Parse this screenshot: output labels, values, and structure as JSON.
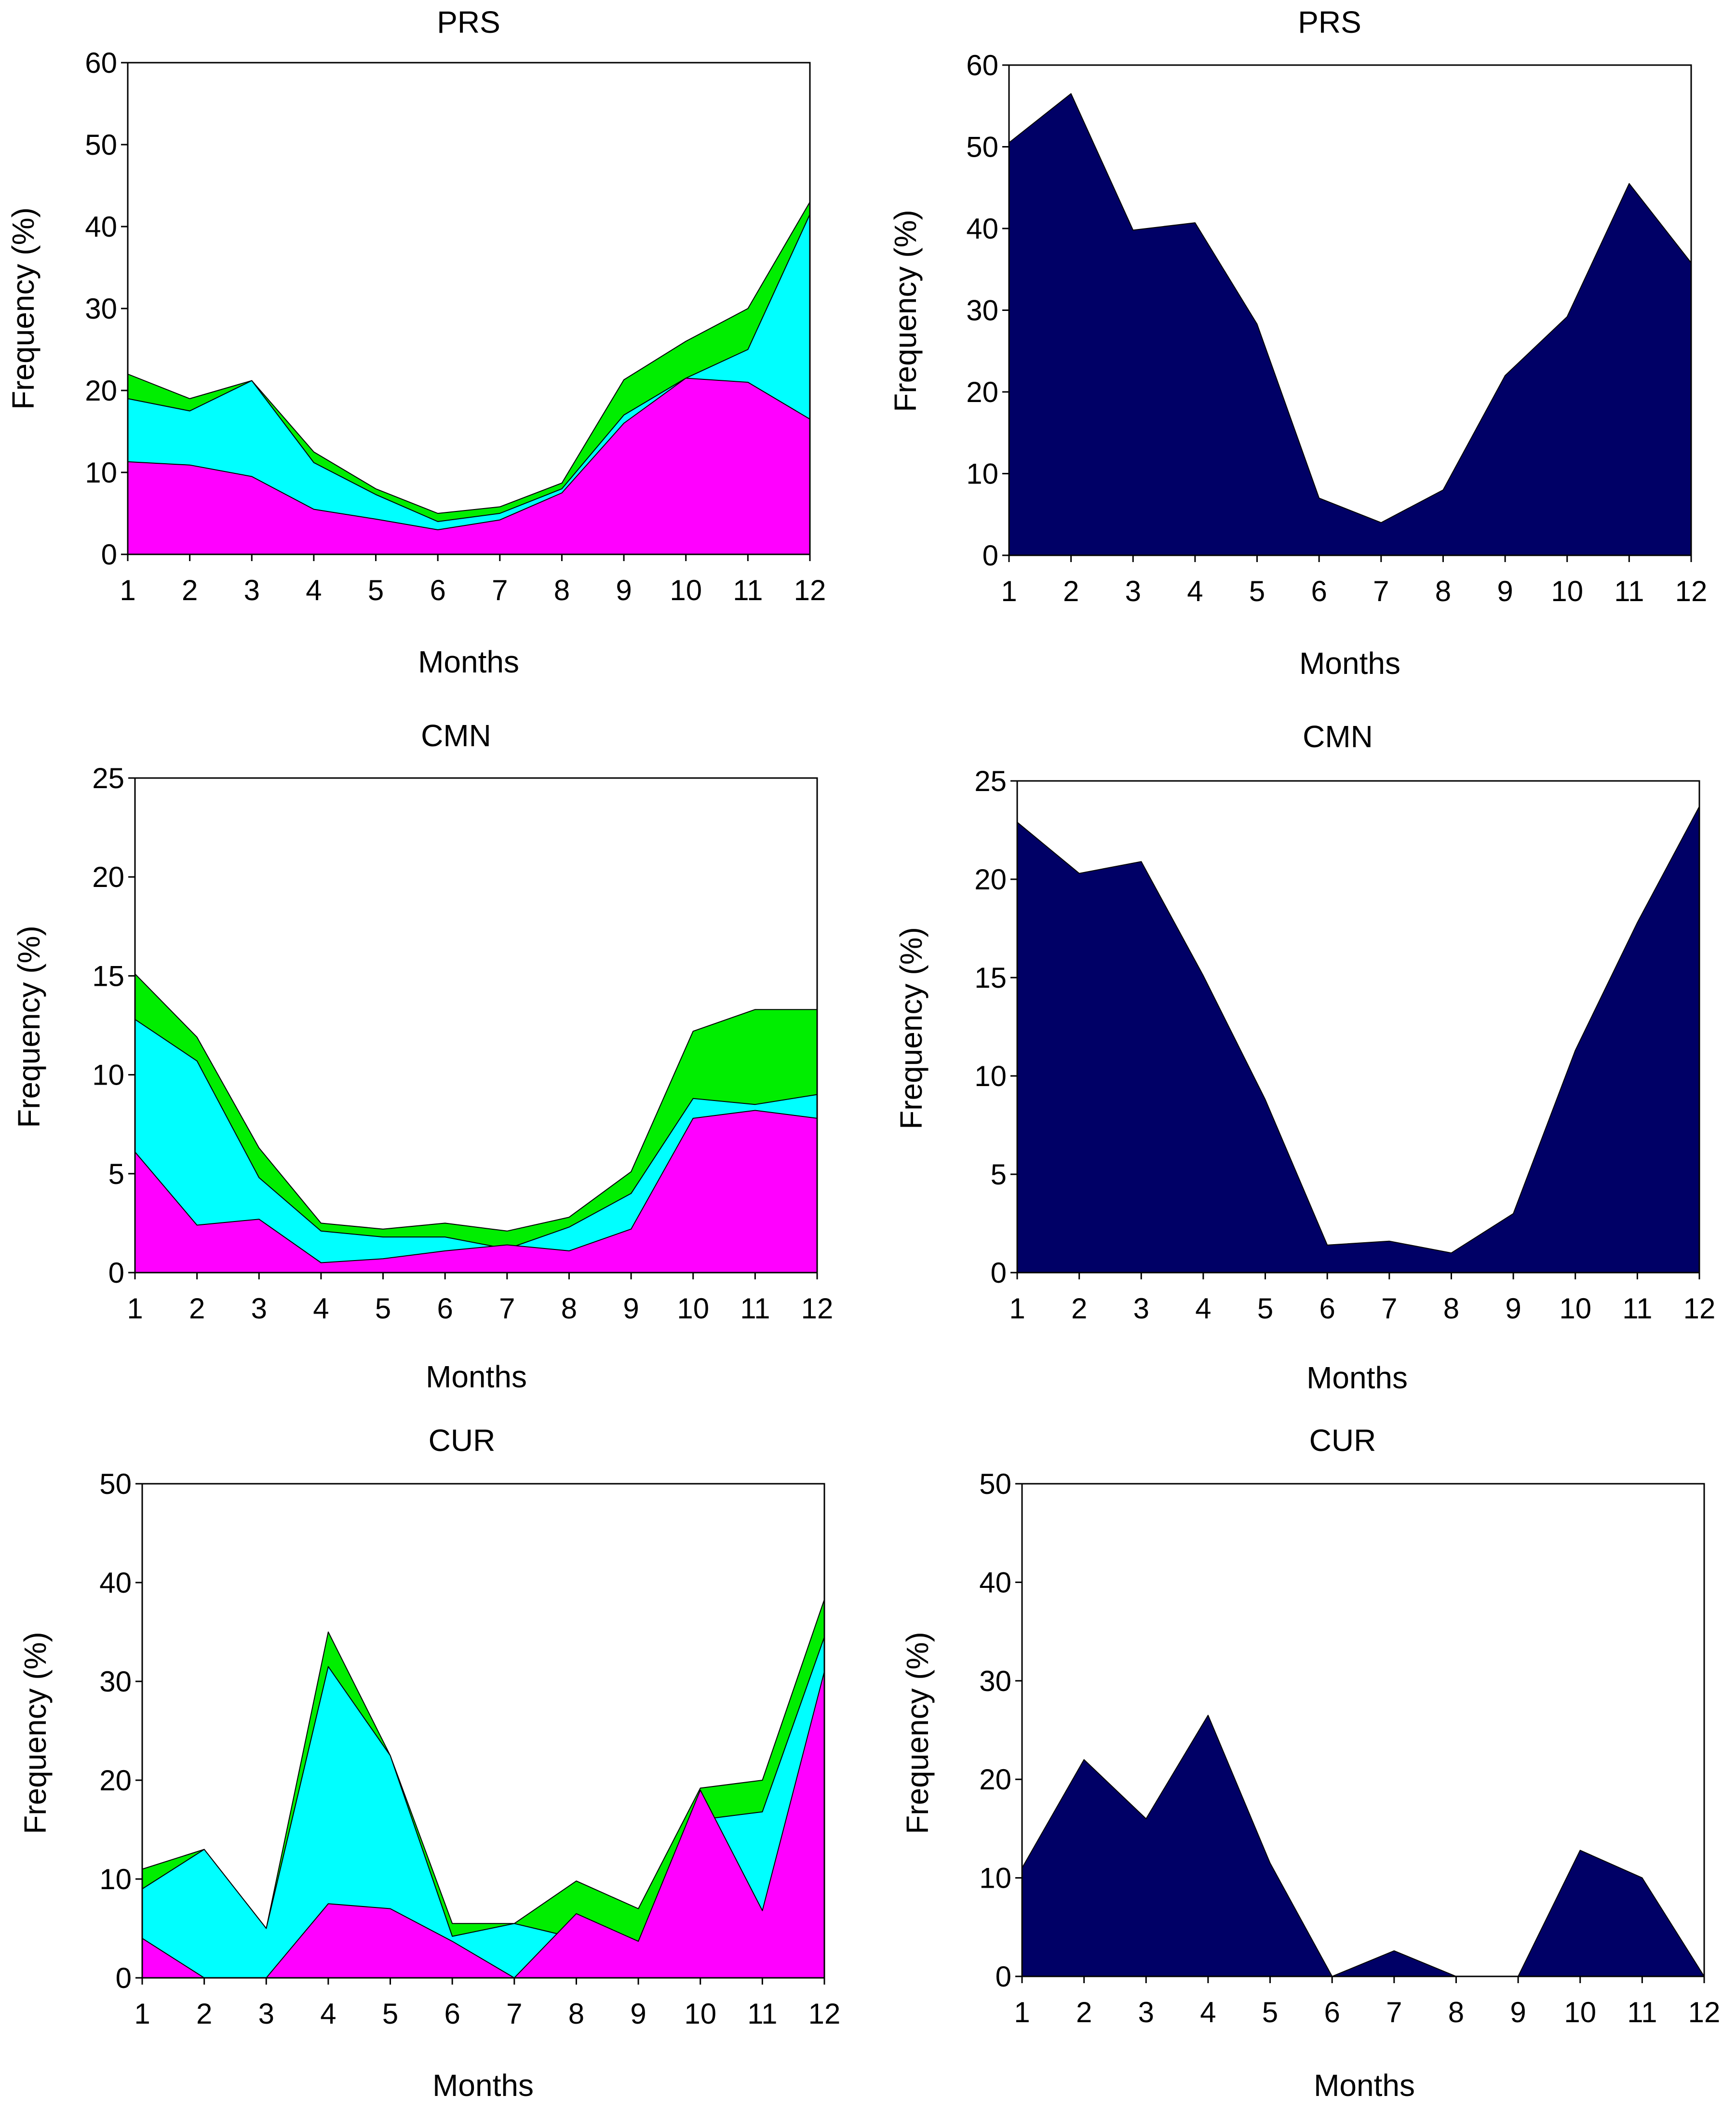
{
  "figure": "Monthly frequency (%) panels",
  "chart_data": [
    {
      "panel": "left-top",
      "type": "area",
      "stacked": true,
      "title": "PRS",
      "xlabel": "Months",
      "ylabel": "Frequency (%)",
      "x": [
        1,
        2,
        3,
        4,
        5,
        6,
        7,
        8,
        9,
        10,
        11,
        12
      ],
      "xticks": [
        "1",
        "2",
        "3",
        "4",
        "5",
        "6",
        "7",
        "8",
        "9",
        "10",
        "11",
        "12"
      ],
      "ylim": [
        0,
        60
      ],
      "yticks": [
        0,
        10,
        20,
        30,
        40,
        50,
        60
      ],
      "series": [
        {
          "name": "magenta",
          "color": "#ff00ff",
          "values": [
            11.3,
            10.9,
            9.5,
            5.5,
            4.3,
            3.0,
            4.2,
            7.5,
            16,
            21.5,
            21,
            16.5
          ]
        },
        {
          "name": "cyan",
          "color": "#00ffff",
          "values": [
            7.7,
            6.6,
            11.7,
            5.7,
            3.0,
            1.0,
            0.8,
            0.5,
            1,
            0,
            4,
            25
          ]
        },
        {
          "name": "green",
          "color": "#00ee00",
          "values": [
            3,
            1.5,
            0,
            1.3,
            0.7,
            1,
            0.8,
            0.7,
            4.3,
            4.5,
            5,
            1.5
          ]
        }
      ]
    },
    {
      "panel": "right-top",
      "type": "area",
      "title": "PRS",
      "xlabel": "Months",
      "ylabel": "Frequency (%)",
      "x": [
        1,
        2,
        3,
        4,
        5,
        6,
        7,
        8,
        9,
        10,
        11,
        12
      ],
      "xticks": [
        "1",
        "2",
        "3",
        "4",
        "5",
        "6",
        "7",
        "8",
        "9",
        "10",
        "11",
        "12"
      ],
      "ylim": [
        0,
        60
      ],
      "yticks": [
        0,
        10,
        20,
        30,
        40,
        50,
        60
      ],
      "series": [
        {
          "name": "navy",
          "color": "#000066",
          "values": [
            50.5,
            56.5,
            39.8,
            40.7,
            28.3,
            7.0,
            4.0,
            8.0,
            22.0,
            29.2,
            45.5,
            35.8
          ]
        }
      ]
    },
    {
      "panel": "left-middle",
      "type": "area",
      "stacked": true,
      "title": "CMN",
      "xlabel": "Months",
      "ylabel": "Frequency (%)",
      "x": [
        1,
        2,
        3,
        4,
        5,
        6,
        7,
        8,
        9,
        10,
        11,
        12
      ],
      "xticks": [
        "1",
        "2",
        "3",
        "4",
        "5",
        "6",
        "7",
        "8",
        "9",
        "10",
        "11",
        "12"
      ],
      "ylim": [
        0,
        25
      ],
      "yticks": [
        0,
        5,
        10,
        15,
        20,
        25
      ],
      "series": [
        {
          "name": "magenta",
          "color": "#ff00ff",
          "values": [
            6.1,
            2.4,
            2.7,
            0.5,
            0.7,
            1.1,
            1.4,
            1.1,
            2.2,
            7.8,
            8.2,
            7.8
          ]
        },
        {
          "name": "cyan",
          "color": "#00ffff",
          "values": [
            6.7,
            8.3,
            2.1,
            1.6,
            1.1,
            0.7,
            -0.2,
            1.2,
            1.8,
            1.0,
            0.3,
            1.2
          ]
        },
        {
          "name": "green",
          "color": "#00ee00",
          "values": [
            2.3,
            1.2,
            1.5,
            0.4,
            0.4,
            0.7,
            0.9,
            0.5,
            1.1,
            3.4,
            4.8,
            4.3
          ]
        }
      ]
    },
    {
      "panel": "right-middle",
      "type": "area",
      "title": "CMN",
      "xlabel": "Months",
      "ylabel": "Frequency (%)",
      "x": [
        1,
        2,
        3,
        4,
        5,
        6,
        7,
        8,
        9,
        10,
        11,
        12
      ],
      "xticks": [
        "1",
        "2",
        "3",
        "4",
        "5",
        "6",
        "7",
        "8",
        "9",
        "10",
        "11",
        "12"
      ],
      "ylim": [
        0,
        25
      ],
      "yticks": [
        0,
        5,
        10,
        15,
        20,
        25
      ],
      "series": [
        {
          "name": "navy",
          "color": "#000066",
          "values": [
            22.9,
            20.3,
            20.9,
            15.1,
            8.8,
            1.4,
            1.6,
            1.0,
            3.0,
            11.3,
            17.8,
            23.7
          ]
        }
      ]
    },
    {
      "panel": "left-bottom",
      "type": "area",
      "stacked": true,
      "title": "CUR",
      "xlabel": "Months",
      "ylabel": "Frequency (%)",
      "x": [
        1,
        2,
        3,
        4,
        5,
        6,
        7,
        8,
        9,
        10,
        11,
        12
      ],
      "xticks": [
        "1",
        "2",
        "3",
        "4",
        "5",
        "6",
        "7",
        "8",
        "9",
        "10",
        "11",
        "12"
      ],
      "ylim": [
        0,
        50
      ],
      "yticks": [
        0,
        10,
        20,
        30,
        40,
        50
      ],
      "series": [
        {
          "name": "magenta",
          "color": "#ff00ff",
          "values": [
            4.0,
            0,
            0,
            7.5,
            7.0,
            3.7,
            0,
            6.5,
            3.7,
            19.0,
            6.8,
            31.0
          ]
        },
        {
          "name": "cyan",
          "color": "#00ffff",
          "values": [
            5.0,
            13.0,
            5.0,
            24.0,
            15.5,
            0.5,
            5.5,
            -2.5,
            0,
            -3.0,
            10.0,
            3.5
          ]
        },
        {
          "name": "green",
          "color": "#00ee00",
          "values": [
            2.0,
            0,
            0,
            3.5,
            0,
            1.3,
            0,
            5.8,
            3.3,
            3.2,
            3.2,
            3.8
          ]
        }
      ]
    },
    {
      "panel": "right-bottom",
      "type": "area",
      "title": "CUR",
      "xlabel": "Months",
      "ylabel": "Frequency (%)",
      "x": [
        1,
        2,
        3,
        4,
        5,
        6,
        7,
        8,
        9,
        10,
        11,
        12
      ],
      "xticks": [
        "1",
        "2",
        "3",
        "4",
        "5",
        "6",
        "7",
        "8",
        "9",
        "10",
        "11",
        "12"
      ],
      "ylim": [
        0,
        50
      ],
      "yticks": [
        0,
        10,
        20,
        30,
        40,
        50
      ],
      "series": [
        {
          "name": "navy",
          "color": "#000066",
          "values": [
            11.0,
            22.0,
            16.0,
            26.5,
            11.5,
            0,
            2.6,
            0,
            0,
            12.8,
            10.0,
            0
          ]
        }
      ]
    }
  ]
}
